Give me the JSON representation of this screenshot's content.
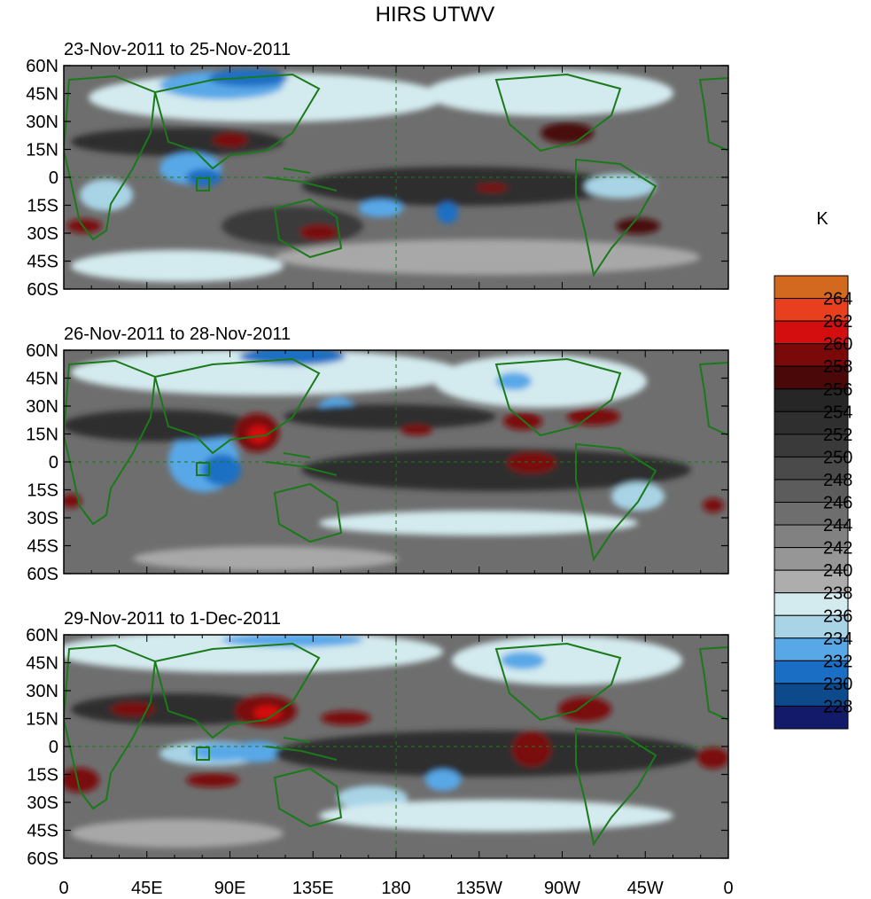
{
  "chart_data": {
    "type": "heatmap",
    "title": "HIRS UTWV",
    "units": "K",
    "colorbar": {
      "levels": [
        "264",
        "262",
        "260",
        "258",
        "256",
        "254",
        "252",
        "250",
        "248",
        "246",
        "244",
        "242",
        "240",
        "238",
        "236",
        "234",
        "232",
        "230",
        "228"
      ],
      "colors": [
        "#d2691e",
        "#e8401e",
        "#d40e0e",
        "#7a0a0a",
        "#4a0808",
        "#262626",
        "#2f2f2f",
        "#3a3a3a",
        "#4a4a4a",
        "#5c5c5c",
        "#6e6e6e",
        "#818181",
        "#969696",
        "#adadad",
        "#d3eaee",
        "#a8d4e6",
        "#58a8e8",
        "#1a6fc4",
        "#0c4a8c",
        "#141a6a"
      ]
    },
    "lat_ticks": [
      "60N",
      "45N",
      "30N",
      "15N",
      "0",
      "15S",
      "30S",
      "45S",
      "60S"
    ],
    "lon_ticks": [
      "0",
      "45E",
      "90E",
      "135E",
      "180",
      "135W",
      "90W",
      "45W",
      "0"
    ],
    "panels": [
      {
        "title": "23-Nov-2011 to 25-Nov-2011"
      },
      {
        "title": "26-Nov-2011 to 28-Nov-2011"
      },
      {
        "title": "29-Nov-2011 to 1-Dec-2011"
      }
    ]
  },
  "colors": {
    "coast": "#1a7a1a",
    "frame": "#000000"
  }
}
